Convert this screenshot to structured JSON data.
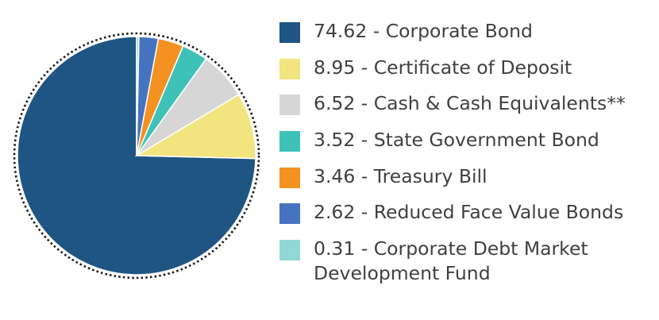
{
  "chart_data": {
    "type": "pie",
    "title": "",
    "unit": "%",
    "slices": [
      {
        "label": "74.62 - Corporate Bond",
        "value": 74.62,
        "color": "#1f5582"
      },
      {
        "label": "8.95 - Certificate of Deposit",
        "value": 8.95,
        "color": "#f2e47e"
      },
      {
        "label": "6.52 - Cash & Cash Equivalents**",
        "value": 6.52,
        "color": "#d6d6d6"
      },
      {
        "label": "3.52 - State Government Bond",
        "value": 3.52,
        "color": "#3ec2b8"
      },
      {
        "label": "3.46 - Treasury Bill",
        "value": 3.46,
        "color": "#f39222"
      },
      {
        "label": "2.62 - Reduced Face Value Bonds",
        "value": 2.62,
        "color": "#4673c0"
      },
      {
        "label": "0.31 - Corporate Debt Market\nDevelopment Fund",
        "value": 0.31,
        "color": "#8fd8d6"
      }
    ],
    "legend_position": "right"
  }
}
